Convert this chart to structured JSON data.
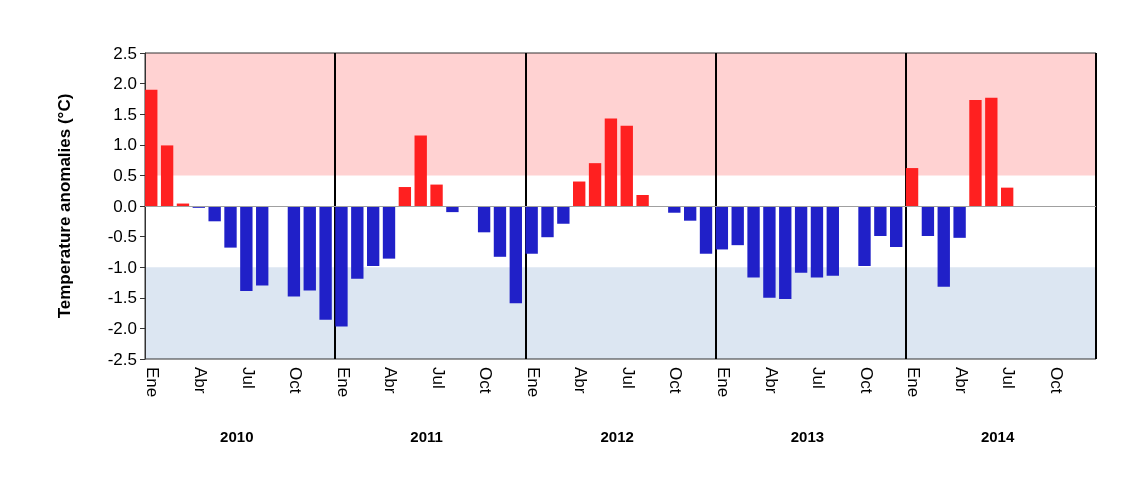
{
  "chart_data": {
    "type": "bar",
    "ylabel": "Temperature anomalies (°C)",
    "categories": [
      "Ene",
      null,
      null,
      "Abr",
      null,
      null,
      "Jul",
      null,
      null,
      "Oct",
      null,
      null,
      "Ene",
      null,
      null,
      "Abr",
      null,
      null,
      "Jul",
      null,
      null,
      "Oct",
      null,
      null,
      "Ene",
      null,
      null,
      "Abr",
      null,
      null,
      "Jul",
      null,
      null,
      "Oct",
      null,
      null,
      "Ene",
      null,
      null,
      "Abr",
      null,
      null,
      "Jul",
      null,
      null,
      "Oct",
      null,
      null,
      "Ene",
      null,
      null,
      "Abr",
      null,
      null,
      "Jul",
      null,
      null,
      "Oct",
      null,
      null
    ],
    "values": [
      1.9,
      0.99,
      0.04,
      -0.03,
      -0.25,
      -0.68,
      -1.39,
      -1.3,
      null,
      -1.48,
      -1.38,
      -1.86,
      -1.97,
      -1.19,
      -0.98,
      -0.86,
      0.31,
      1.15,
      0.35,
      -0.1,
      null,
      -0.43,
      -0.83,
      -1.59,
      -0.78,
      -0.51,
      -0.29,
      0.4,
      0.7,
      1.43,
      1.31,
      0.18,
      null,
      -0.11,
      -0.24,
      -0.78,
      -0.71,
      -0.64,
      -1.17,
      -1.5,
      -1.52,
      -1.09,
      -1.17,
      -1.14,
      null,
      -0.98,
      -0.49,
      -0.67,
      0.62,
      -0.49,
      -1.32,
      -0.52,
      1.73,
      1.77,
      0.3,
      null,
      null,
      null,
      null,
      null
    ],
    "colors": [
      "#ff2020",
      "#ff2020",
      "#ff2020",
      "#2020c8",
      "#2020c8",
      "#2020c8",
      "#2020c8",
      "#2020c8",
      "#2020c8",
      "#2020c8",
      "#2020c8",
      "#2020c8",
      "#2020c8",
      "#2020c8",
      "#2020c8",
      "#2020c8",
      "#ff2020",
      "#ff2020",
      "#ff2020",
      "#2020c8",
      "#2020c8",
      "#2020c8",
      "#2020c8",
      "#2020c8",
      "#2020c8",
      "#2020c8",
      "#2020c8",
      "#ff2020",
      "#ff2020",
      "#ff2020",
      "#ff2020",
      "#ff2020",
      "#2020c8",
      "#2020c8",
      "#2020c8",
      "#2020c8",
      "#2020c8",
      "#2020c8",
      "#2020c8",
      "#2020c8",
      "#2020c8",
      "#2020c8",
      "#2020c8",
      "#2020c8",
      "#2020c8",
      "#2020c8",
      "#2020c8",
      "#2020c8",
      "#ff2020",
      "#2020c8",
      "#2020c8",
      "#2020c8",
      "#ff2020",
      "#ff2020",
      "#ff2020",
      "#2020c8",
      "#2020c8",
      "#2020c8",
      "#2020c8",
      "#2020c8"
    ],
    "ylim": [
      -2.5,
      2.5
    ],
    "yticks": [
      {
        "value": -2.5,
        "label": "-2.5"
      },
      {
        "value": -2,
        "label": "-2.0"
      },
      {
        "value": -1.5,
        "label": "-1.5"
      },
      {
        "value": -1,
        "label": "-1.0"
      },
      {
        "value": -0.5,
        "label": "-0.5"
      },
      {
        "value": 0,
        "label": "0.0"
      },
      {
        "value": 0.5,
        "label": "0.5"
      },
      {
        "value": 1,
        "label": "1.0"
      },
      {
        "value": 1.5,
        "label": "1.5"
      },
      {
        "value": 2,
        "label": "2.0"
      },
      {
        "value": 2.5,
        "label": "2.5"
      }
    ],
    "bands": [
      {
        "axis": "y",
        "from": 0.5,
        "to": 2.5,
        "color": "#ffd2d2"
      },
      {
        "axis": "y",
        "from": -2.5,
        "to": -1,
        "color": "#dce6f2"
      }
    ],
    "ref_lines": [
      {
        "axis": "y",
        "value": 0,
        "color": "#a0a0a0"
      }
    ],
    "annotations": [
      "2010",
      "2011",
      "2012",
      "2013",
      "2014"
    ],
    "grid": false
  }
}
